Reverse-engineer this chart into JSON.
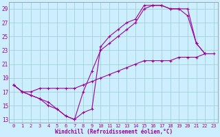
{
  "xlabel": "Windchill (Refroidissement éolien,°C)",
  "xlim": [
    -0.5,
    23.5
  ],
  "ylim": [
    12.5,
    30
  ],
  "yticks": [
    13,
    15,
    17,
    19,
    21,
    23,
    25,
    27,
    29
  ],
  "xticks": [
    0,
    1,
    2,
    3,
    4,
    5,
    6,
    7,
    8,
    9,
    10,
    11,
    12,
    13,
    14,
    15,
    16,
    17,
    18,
    19,
    20,
    21,
    22,
    23
  ],
  "line_color": "#990099",
  "bg_color": "#cceeff",
  "grid_color": "#99cccc",
  "curve1_x": [
    0,
    1,
    2,
    3,
    4,
    5,
    6,
    7,
    8,
    9,
    10,
    11,
    12,
    13,
    14,
    15,
    16,
    17,
    18,
    19,
    20,
    21,
    22
  ],
  "curve1_y": [
    18,
    17,
    16.5,
    16,
    15.5,
    14.5,
    13.5,
    13,
    17,
    20,
    23,
    24,
    25,
    26,
    27,
    29,
    29.5,
    29.5,
    29,
    29,
    28,
    24,
    22.5
  ],
  "curve2_x": [
    0,
    1,
    2,
    3,
    4,
    5,
    6,
    7,
    8,
    9,
    10,
    11,
    12,
    13,
    14,
    15,
    16,
    17,
    18,
    19,
    20,
    21,
    22,
    23
  ],
  "curve2_y": [
    18,
    17,
    17,
    17.5,
    17.5,
    17.5,
    17.5,
    17.5,
    18,
    18.5,
    19,
    19.5,
    20,
    20.5,
    21,
    21.5,
    21.5,
    21.5,
    21.5,
    22,
    22,
    22,
    22.5,
    22.5
  ],
  "curve3_x": [
    0,
    1,
    2,
    3,
    4,
    5,
    6,
    7,
    8,
    9,
    10,
    11,
    12,
    13,
    14,
    15,
    16,
    17,
    18,
    19,
    20,
    21,
    22
  ],
  "curve3_y": [
    18,
    17,
    16.5,
    16,
    15,
    14.5,
    13.5,
    13,
    14,
    14.5,
    23.5,
    25,
    26,
    27,
    27.5,
    29.5,
    29.5,
    29.5,
    29,
    29,
    29,
    24,
    22.5
  ]
}
